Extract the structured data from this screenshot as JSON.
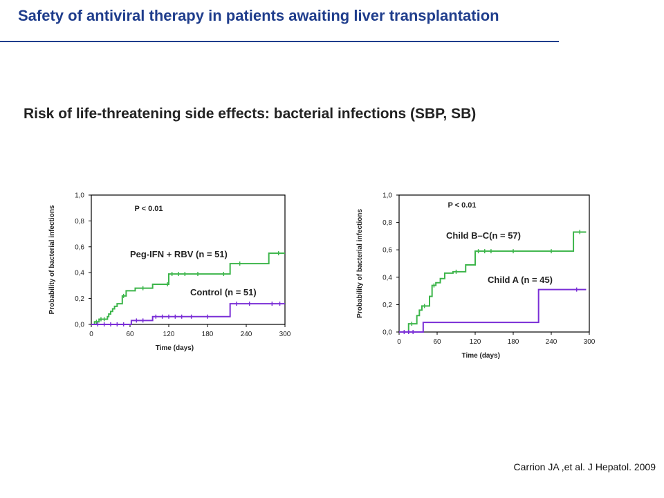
{
  "header": {
    "title": "Safety of antiviral therapy in patients awaiting liver transplantation",
    "subtitle": "Risk of life-threatening side effects: bacterial infections (SBP, SB)",
    "citation": "Carrion JA ,et al. J Hepatol. 2009"
  },
  "colors": {
    "title": "#1f3d8c",
    "green": "#3cb54a",
    "purple": "#7a2ed6"
  },
  "chart_data": [
    {
      "type": "line",
      "step": true,
      "xlabel": "Time (days)",
      "ylabel": "Probability of bacterial infections",
      "xlim": [
        0,
        300
      ],
      "ylim": [
        0,
        1
      ],
      "xticks": [
        "0",
        "60",
        "120",
        "180",
        "240",
        "300"
      ],
      "yticks": [
        "0,0",
        "0,2",
        "0,4",
        "0,6",
        "0,8",
        "1,0"
      ],
      "p_value": "P < 0.01",
      "series": [
        {
          "name": "Peg-IFN + RBV (n = 51)",
          "color": "#3cb54a",
          "x": [
            0,
            5,
            12,
            25,
            27,
            30,
            33,
            36,
            40,
            48,
            54,
            68,
            95,
            120,
            215,
            275,
            300
          ],
          "y": [
            0,
            0.02,
            0.04,
            0.06,
            0.08,
            0.1,
            0.12,
            0.14,
            0.16,
            0.22,
            0.26,
            0.28,
            0.31,
            0.39,
            0.47,
            0.55,
            0.55
          ],
          "censor_x": [
            8,
            15,
            20,
            50,
            80,
            118,
            125,
            135,
            145,
            165,
            205,
            230,
            290
          ]
        },
        {
          "name": "Control (n = 51)",
          "color": "#7a2ed6",
          "x": [
            0,
            62,
            95,
            215,
            300
          ],
          "y": [
            0,
            0.03,
            0.06,
            0.16,
            0.16
          ],
          "censor_x": [
            10,
            20,
            30,
            40,
            50,
            70,
            80,
            100,
            110,
            120,
            130,
            140,
            155,
            180,
            225,
            245,
            280,
            292
          ]
        }
      ]
    },
    {
      "type": "line",
      "step": true,
      "xlabel": "Time (days)",
      "ylabel": "Probability of bacterial infections",
      "xlim": [
        0,
        300
      ],
      "ylim": [
        0,
        1
      ],
      "xticks": [
        "0",
        "60",
        "120",
        "180",
        "240",
        "300"
      ],
      "yticks": [
        "0,0",
        "0,2",
        "0,4",
        "0,6",
        "0,8",
        "1,0"
      ],
      "p_value": "P < 0.01",
      "series": [
        {
          "name": "Child B–C(n = 57)",
          "color": "#3cb54a",
          "x": [
            0,
            15,
            28,
            32,
            36,
            48,
            52,
            58,
            65,
            72,
            85,
            105,
            120,
            275,
            295
          ],
          "y": [
            0,
            0.06,
            0.12,
            0.16,
            0.19,
            0.26,
            0.34,
            0.36,
            0.39,
            0.43,
            0.44,
            0.49,
            0.59,
            0.73,
            0.73
          ],
          "censor_x": [
            20,
            40,
            55,
            90,
            125,
            135,
            145,
            180,
            240,
            285
          ]
        },
        {
          "name": "Child A (n = 45)",
          "color": "#7a2ed6",
          "x": [
            0,
            38,
            220,
            295
          ],
          "y": [
            0,
            0.07,
            0.31,
            0.31
          ],
          "censor_x": [
            8,
            15,
            22,
            280
          ]
        }
      ]
    }
  ]
}
